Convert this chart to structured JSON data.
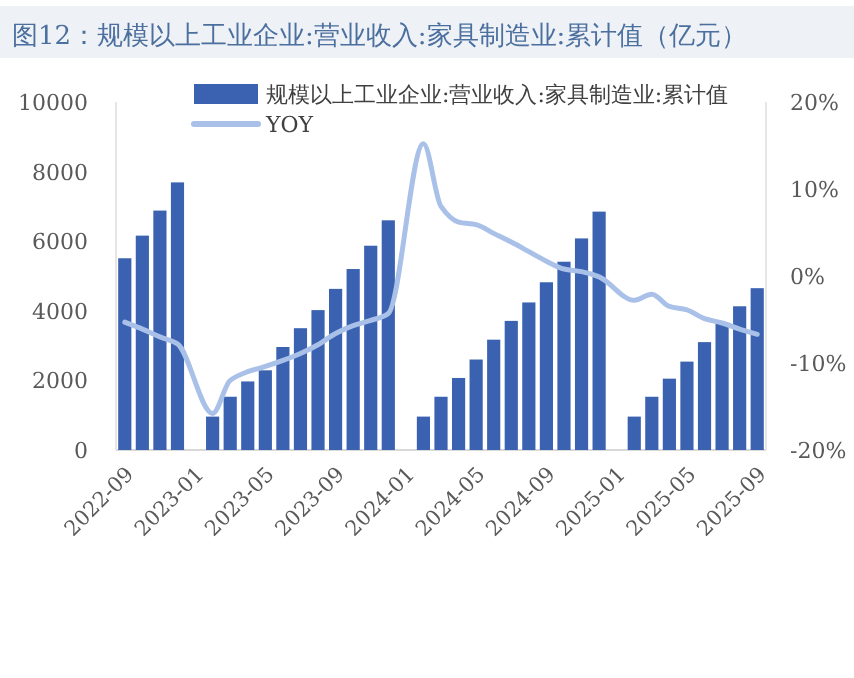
{
  "chart_data": {
    "type": "bar",
    "title": "图12：规模以上工业企业:营业收入:家具制造业:累计值（亿元）",
    "categories": [
      "2022-09",
      null,
      null,
      null,
      "2023-01",
      null,
      null,
      null,
      "2023-05",
      null,
      null,
      null,
      "2023-09",
      null,
      null,
      null,
      "2024-01",
      null,
      null,
      null,
      "2024-05",
      null,
      null,
      null,
      "2024-09",
      null,
      null,
      null,
      "2025-01",
      null,
      null,
      null,
      "2025-05",
      null,
      null,
      null,
      "2025-09"
    ],
    "series": [
      {
        "name": "规模以上工业企业:营业收入:家具制造业:累计值",
        "color": "#3a62b0",
        "values": [
          5510,
          6160,
          6880,
          7690,
          null,
          960,
          1530,
          1970,
          2290,
          2960,
          3500,
          4020,
          4630,
          5200,
          5870,
          6600,
          null,
          960,
          1530,
          2070,
          2600,
          3170,
          3710,
          4240,
          4820,
          5410,
          6080,
          6850,
          null,
          960,
          1530,
          2050,
          2540,
          3100,
          3630,
          4130,
          4650
        ]
      },
      {
        "name": "YOY",
        "type": "line",
        "axis": "y2",
        "color": "#a9c0e8",
        "values": [
          -5.3,
          -6.1,
          -7.0,
          -7.8,
          null,
          -15.8,
          -12.0,
          -11.0,
          -10.4,
          -9.7,
          -8.9,
          -7.9,
          -6.6,
          -5.7,
          -5.1,
          -4.3,
          null,
          15.2,
          8.0,
          6.2,
          5.9,
          4.9,
          3.9,
          2.8,
          1.7,
          0.8,
          0.5,
          -0.1,
          null,
          -2.8,
          -2.1,
          -3.5,
          -3.9,
          -4.9,
          -5.4,
          -6.1,
          -6.7
        ]
      }
    ],
    "ylim": [
      0,
      10000
    ],
    "yticks": [
      0,
      2000,
      4000,
      6000,
      8000,
      10000
    ],
    "y2lim": [
      -20,
      20
    ],
    "y2ticks": [
      {
        "value": -20,
        "label": "-20%"
      },
      {
        "value": -10,
        "label": "-10%"
      },
      {
        "value": 0,
        "label": "0%"
      },
      {
        "value": 10,
        "label": "10%"
      },
      {
        "value": 20,
        "label": "20%"
      }
    ],
    "legend": "top"
  }
}
